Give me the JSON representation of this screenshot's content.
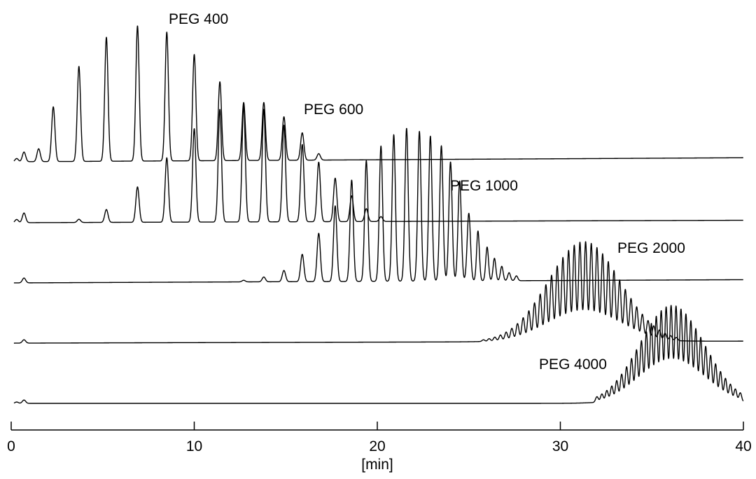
{
  "chart_data": {
    "type": "line",
    "title": "",
    "xlabel": "[min]",
    "ylabel": "",
    "xlim": [
      0,
      40
    ],
    "xticks": [
      0,
      10,
      20,
      30,
      40
    ],
    "grid": false,
    "stacked_offset_traces": true,
    "series": [
      {
        "name": "PEG 400",
        "label": "PEG 400",
        "baseline_end": 0.025,
        "peaks": [
          {
            "x": 0.3,
            "h": 0.02
          },
          {
            "x": 0.7,
            "h": 0.06
          },
          {
            "x": 1.5,
            "h": 0.08
          },
          {
            "x": 2.3,
            "h": 0.34
          },
          {
            "x": 3.7,
            "h": 0.59
          },
          {
            "x": 5.2,
            "h": 0.77
          },
          {
            "x": 6.9,
            "h": 0.84
          },
          {
            "x": 8.5,
            "h": 0.8
          },
          {
            "x": 10.0,
            "h": 0.66
          },
          {
            "x": 11.4,
            "h": 0.49
          },
          {
            "x": 12.7,
            "h": 0.36
          },
          {
            "x": 13.8,
            "h": 0.36
          },
          {
            "x": 14.9,
            "h": 0.27
          },
          {
            "x": 15.9,
            "h": 0.17
          },
          {
            "x": 16.8,
            "h": 0.04
          }
        ]
      },
      {
        "name": "PEG 600",
        "label": "PEG 600",
        "baseline_end": 0.015,
        "peaks": [
          {
            "x": 0.3,
            "h": 0.02
          },
          {
            "x": 0.7,
            "h": 0.06
          },
          {
            "x": 3.7,
            "h": 0.02
          },
          {
            "x": 5.2,
            "h": 0.08
          },
          {
            "x": 6.9,
            "h": 0.22
          },
          {
            "x": 8.5,
            "h": 0.4
          },
          {
            "x": 10.0,
            "h": 0.58
          },
          {
            "x": 11.4,
            "h": 0.7
          },
          {
            "x": 12.7,
            "h": 0.72
          },
          {
            "x": 13.8,
            "h": 0.7
          },
          {
            "x": 14.9,
            "h": 0.6
          },
          {
            "x": 15.9,
            "h": 0.48
          },
          {
            "x": 16.8,
            "h": 0.37
          },
          {
            "x": 17.7,
            "h": 0.27
          },
          {
            "x": 18.6,
            "h": 0.16
          },
          {
            "x": 19.4,
            "h": 0.08
          },
          {
            "x": 20.2,
            "h": 0.03
          }
        ]
      },
      {
        "name": "PEG 1000",
        "label": "PEG 1000",
        "baseline_end": 0.02,
        "peaks": [
          {
            "x": 0.7,
            "h": 0.03
          },
          {
            "x": 12.7,
            "h": 0.01
          },
          {
            "x": 13.8,
            "h": 0.03
          },
          {
            "x": 14.9,
            "h": 0.07
          },
          {
            "x": 15.9,
            "h": 0.17
          },
          {
            "x": 16.8,
            "h": 0.3
          },
          {
            "x": 17.7,
            "h": 0.47
          },
          {
            "x": 18.6,
            "h": 0.63
          },
          {
            "x": 19.4,
            "h": 0.75
          },
          {
            "x": 20.2,
            "h": 0.84
          },
          {
            "x": 20.9,
            "h": 0.91
          },
          {
            "x": 21.6,
            "h": 0.95
          },
          {
            "x": 22.3,
            "h": 0.93
          },
          {
            "x": 22.9,
            "h": 0.9
          },
          {
            "x": 23.5,
            "h": 0.84
          },
          {
            "x": 24.0,
            "h": 0.74
          },
          {
            "x": 24.5,
            "h": 0.62
          },
          {
            "x": 25.0,
            "h": 0.42
          },
          {
            "x": 25.5,
            "h": 0.31
          },
          {
            "x": 26.0,
            "h": 0.21
          },
          {
            "x": 26.4,
            "h": 0.14
          },
          {
            "x": 26.8,
            "h": 0.09
          },
          {
            "x": 27.2,
            "h": 0.05
          },
          {
            "x": 27.6,
            "h": 0.03
          }
        ]
      },
      {
        "name": "PEG 2000",
        "label": "PEG 2000",
        "baseline_end": 0.03,
        "peaks": [
          {
            "x": 0.7,
            "h": 0.05
          }
        ],
        "envelope": {
          "center": 31.3,
          "sigma": 1.95,
          "height": 1.33,
          "spacing": 0.31,
          "from": 25.8,
          "to": 36.5
        }
      },
      {
        "name": "PEG 4000",
        "label": "PEG 4000",
        "baseline_end": 0.0,
        "peaks": [
          {
            "x": 0.3,
            "h": 0.02
          },
          {
            "x": 0.7,
            "h": 0.05
          }
        ],
        "envelope": {
          "center": 36.1,
          "sigma": 1.75,
          "height": 1.3,
          "spacing": 0.27,
          "from": 32.0,
          "to": 40.0
        }
      }
    ]
  }
}
